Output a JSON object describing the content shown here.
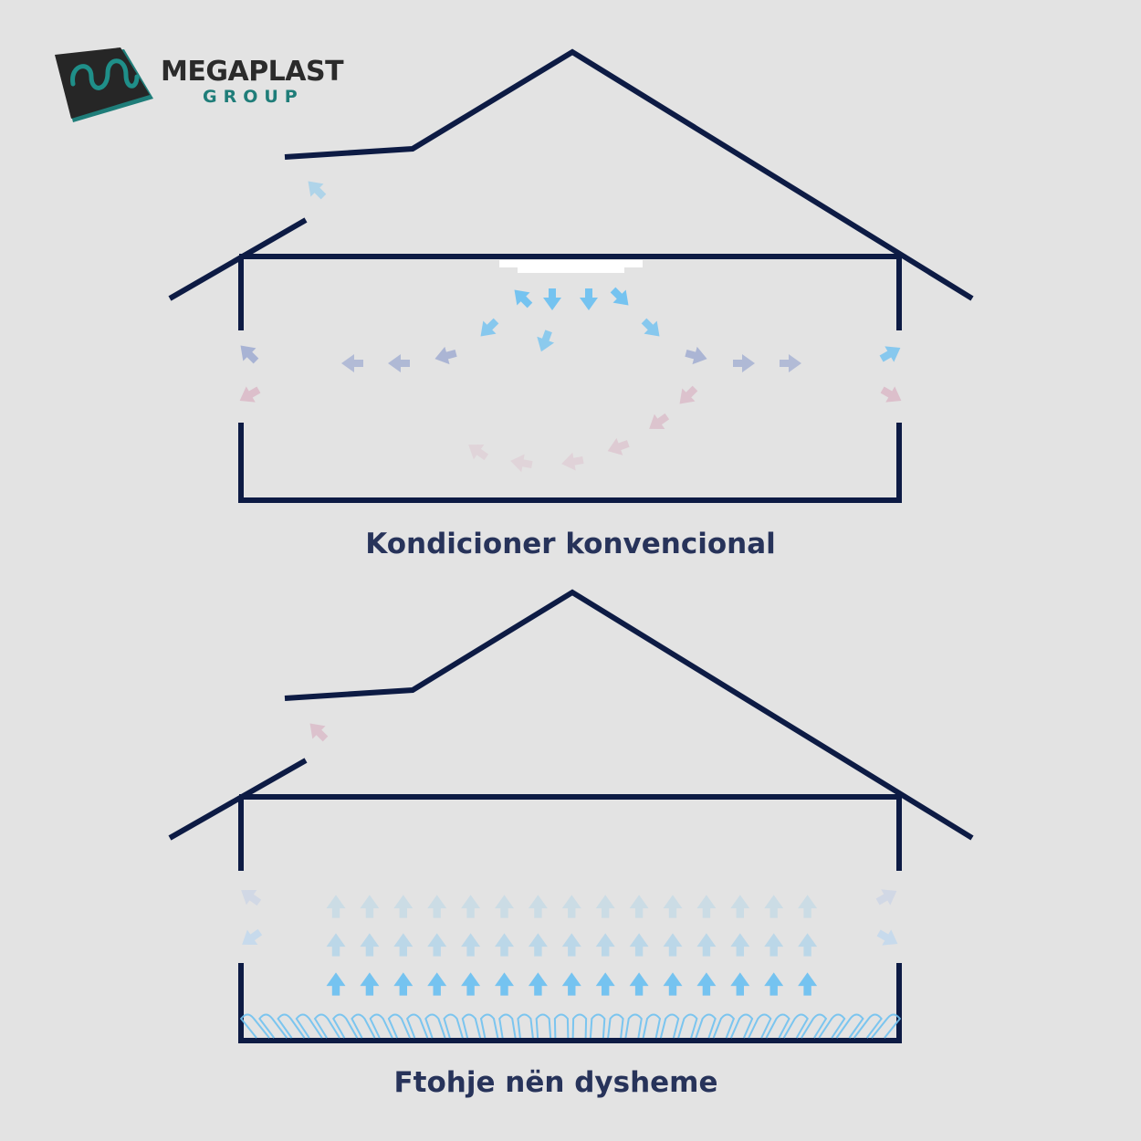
{
  "logo": {
    "name": "MEGAPLAST",
    "sub": "GROUP",
    "colors": {
      "dark": "#2b2b2b",
      "teal": "#1f7d79"
    }
  },
  "diagram1": {
    "caption": "Kondicioner konvencional"
  },
  "diagram2": {
    "caption": "Ftohje nën dysheme"
  },
  "colors": {
    "house": "#0d1b44",
    "caption": "#27335a",
    "cool": "#6fc1f0",
    "mid": "#98a6cf",
    "warm": "#d9b3c3",
    "unit": "#ffffff",
    "background": "#e3e3e3"
  }
}
